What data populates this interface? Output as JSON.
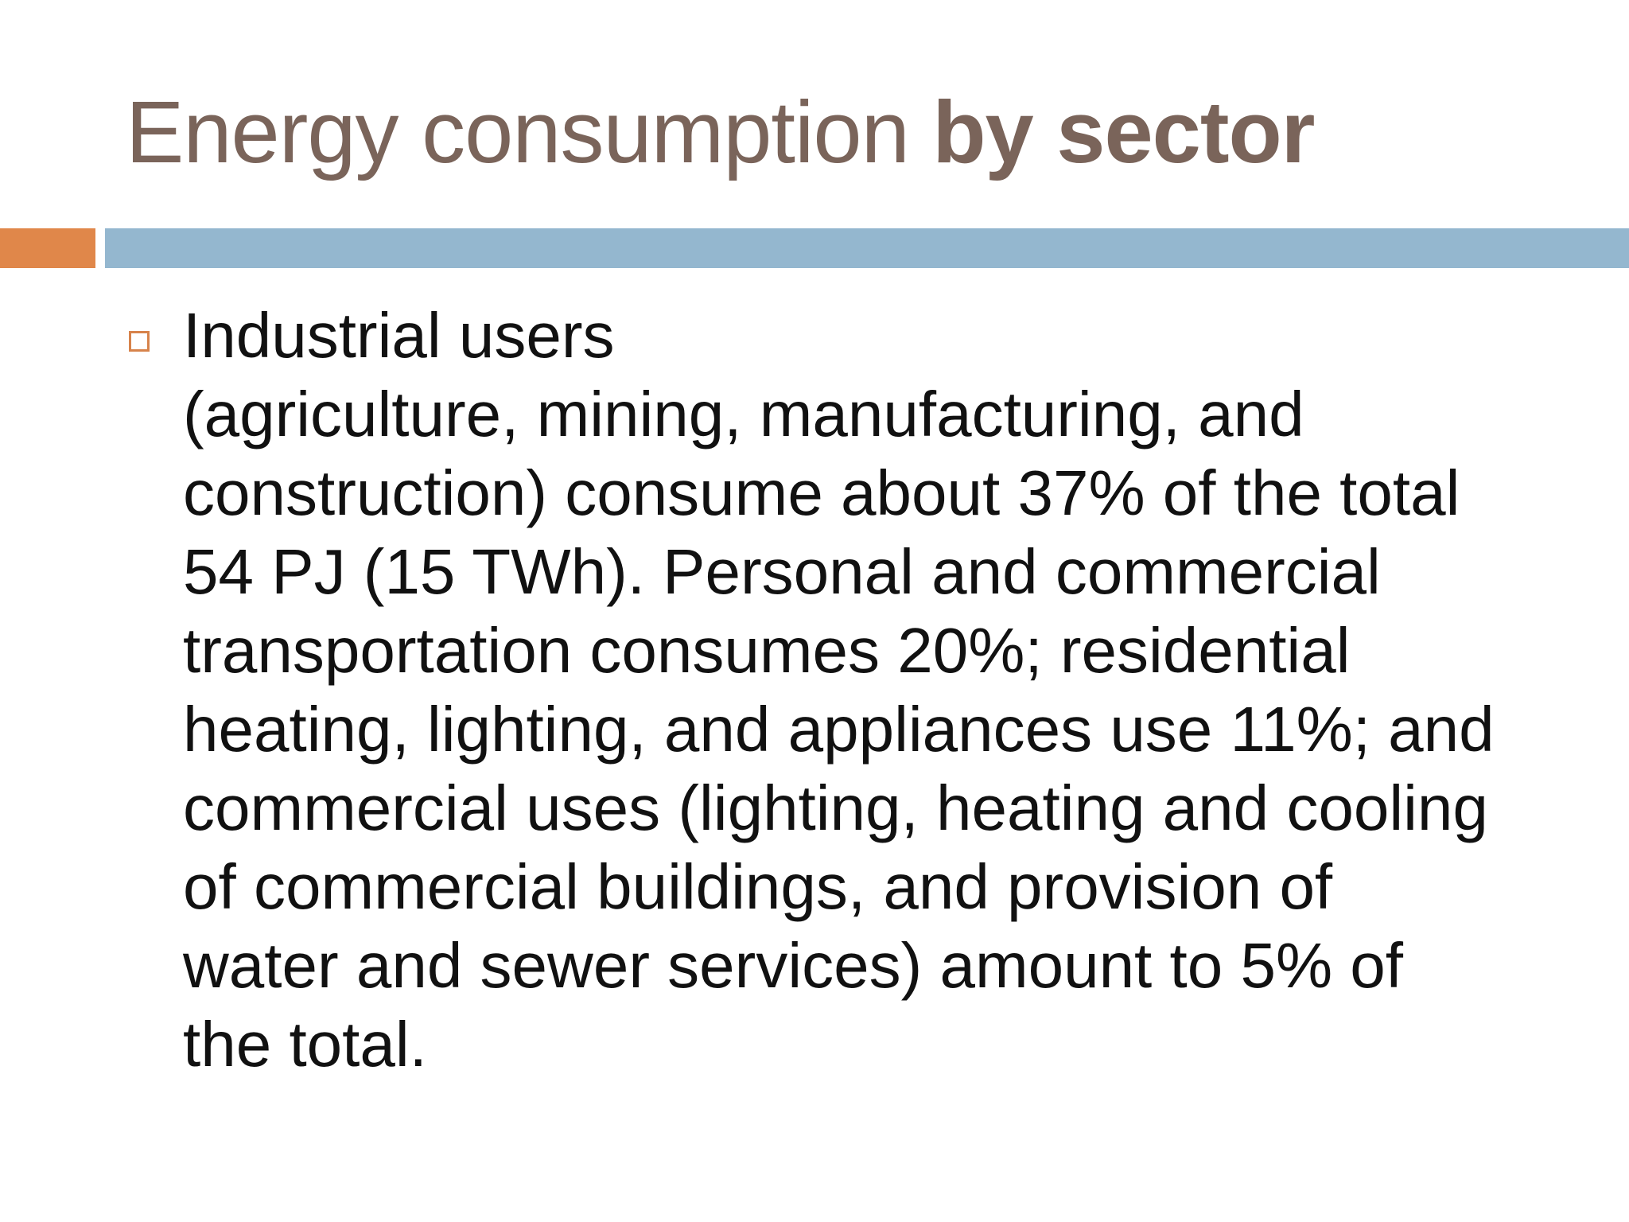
{
  "slide": {
    "title": {
      "regular": "Energy consumption ",
      "bold": "by sector"
    },
    "bullets": [
      {
        "text": "Industrial users\n(agriculture, mining, manufacturing, and\nconstruction) consume about 37% of the total\n54 PJ (15 TWh). Personal and commercial\ntransportation consumes 20%; residential\nheating, lighting, and appliances use 11%; and\ncommercial uses (lighting, heating and cooling\nof commercial buildings, and provision of\nwater and sewer services) amount to 5% of\nthe total."
      }
    ]
  },
  "colors": {
    "title": "#7a645a",
    "accent_orange": "#e0874a",
    "accent_blue": "#94b7cf",
    "bullet_marker": "#d7834b",
    "body_text": "#111111"
  },
  "icons": {
    "bullet": "hollow-square-bullet-icon"
  }
}
